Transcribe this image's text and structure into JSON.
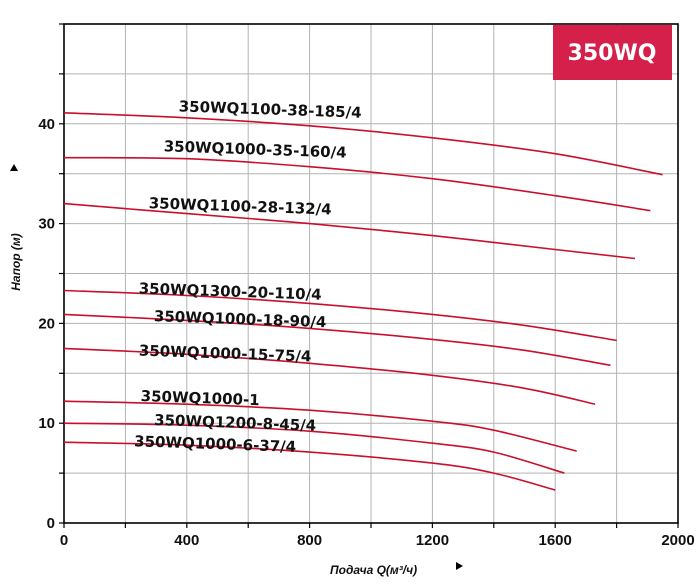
{
  "chart_data": {
    "type": "line",
    "title": "350WQ",
    "xlabel": "Подача Q(м³/ч)",
    "ylabel": "Напор (м)",
    "xlim": [
      0,
      2000
    ],
    "ylim": [
      0,
      50
    ],
    "xticks": [
      "0",
      "400",
      "800",
      "1200",
      "1600",
      "2000"
    ],
    "yticks": [
      "0",
      "10",
      "20",
      "30",
      "40"
    ],
    "grid": true,
    "colors": {
      "curve": "#c8102e",
      "badge": "#d4204a",
      "grid": "#b3b3b3",
      "axis": "#000000"
    },
    "series": [
      {
        "name": "350WQ1100-38-185/4",
        "x": [
          0,
          400,
          800,
          1200,
          1600,
          1950
        ],
        "y": [
          41.1,
          40.6,
          39.8,
          38.6,
          37.0,
          34.9
        ]
      },
      {
        "name": "350WQ1000-35-160/4",
        "x": [
          0,
          400,
          800,
          1200,
          1600,
          1910
        ],
        "y": [
          36.6,
          36.5,
          35.7,
          34.5,
          32.8,
          31.3
        ]
      },
      {
        "name": "350WQ1100-28-132/4",
        "x": [
          0,
          400,
          800,
          1200,
          1600,
          1860
        ],
        "y": [
          32.0,
          31.0,
          30.0,
          28.8,
          27.4,
          26.5
        ]
      },
      {
        "name": "350WQ1300-20-110/4",
        "x": [
          0,
          400,
          800,
          1200,
          1500,
          1800
        ],
        "y": [
          23.3,
          22.8,
          22.0,
          20.9,
          19.8,
          18.3
        ]
      },
      {
        "name": "350WQ1000-18-90/4",
        "x": [
          0,
          400,
          800,
          1200,
          1500,
          1780
        ],
        "y": [
          20.9,
          20.3,
          19.5,
          18.4,
          17.3,
          15.8
        ]
      },
      {
        "name": "350WQ1000-15-75/4",
        "x": [
          0,
          400,
          800,
          1200,
          1500,
          1730
        ],
        "y": [
          17.5,
          16.9,
          16.0,
          14.8,
          13.5,
          11.9
        ]
      },
      {
        "name": "350WQ1000-1",
        "x": [
          0,
          400,
          800,
          1200,
          1400,
          1670
        ],
        "y": [
          12.2,
          11.9,
          11.3,
          10.2,
          9.3,
          7.2
        ]
      },
      {
        "name": "350WQ1200-8-45/4",
        "x": [
          0,
          400,
          800,
          1200,
          1400,
          1630
        ],
        "y": [
          10.0,
          9.8,
          9.2,
          8.0,
          7.1,
          5.0
        ]
      },
      {
        "name": "350WQ1000-6-37/4",
        "x": [
          0,
          400,
          800,
          1200,
          1400,
          1600
        ],
        "y": [
          8.1,
          7.8,
          7.1,
          6.0,
          5.0,
          3.3
        ]
      }
    ]
  }
}
